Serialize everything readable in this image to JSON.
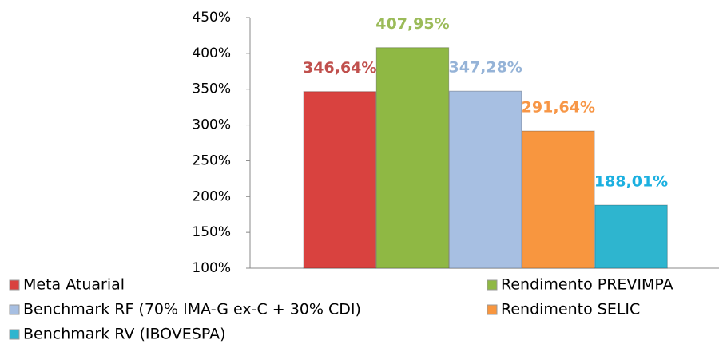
{
  "chart_data": {
    "type": "bar",
    "categories": [
      null
    ],
    "series": [
      {
        "name": "Meta Atuarial",
        "color": "#d9423f",
        "label_color": "#c0504d",
        "values": [
          346.64
        ],
        "value_labels": [
          "346,64%"
        ]
      },
      {
        "name": "Rendimento PREVIMPA",
        "color": "#8fb844",
        "label_color": "#9bbb59",
        "values": [
          407.95
        ],
        "value_labels": [
          "407,95%"
        ]
      },
      {
        "name": "Benchmark RF (70% IMA-G ex-C + 30% CDI)",
        "color": "#a7bfe2",
        "label_color": "#95b3d7",
        "values": [
          347.28
        ],
        "value_labels": [
          "347,28%"
        ]
      },
      {
        "name": "Rendimento SELIC",
        "color": "#f8963f",
        "label_color": "#f79646",
        "values": [
          291.64
        ],
        "value_labels": [
          "291,64%"
        ]
      },
      {
        "name": "Benchmark RV (IBOVESPA)",
        "color": "#2eb5cf",
        "label_color": "#1cb0e0",
        "values": [
          188.01
        ],
        "value_labels": [
          "188,01%"
        ]
      }
    ],
    "ylim": [
      100,
      450
    ],
    "yticks": [
      {
        "value": 100,
        "label": "100%"
      },
      {
        "value": 150,
        "label": "150%"
      },
      {
        "value": 200,
        "label": "200%"
      },
      {
        "value": 250,
        "label": "250%"
      },
      {
        "value": 300,
        "label": "300%"
      },
      {
        "value": 350,
        "label": "350%"
      },
      {
        "value": 400,
        "label": "400%"
      },
      {
        "value": 450,
        "label": "450%"
      }
    ],
    "grid": false
  }
}
